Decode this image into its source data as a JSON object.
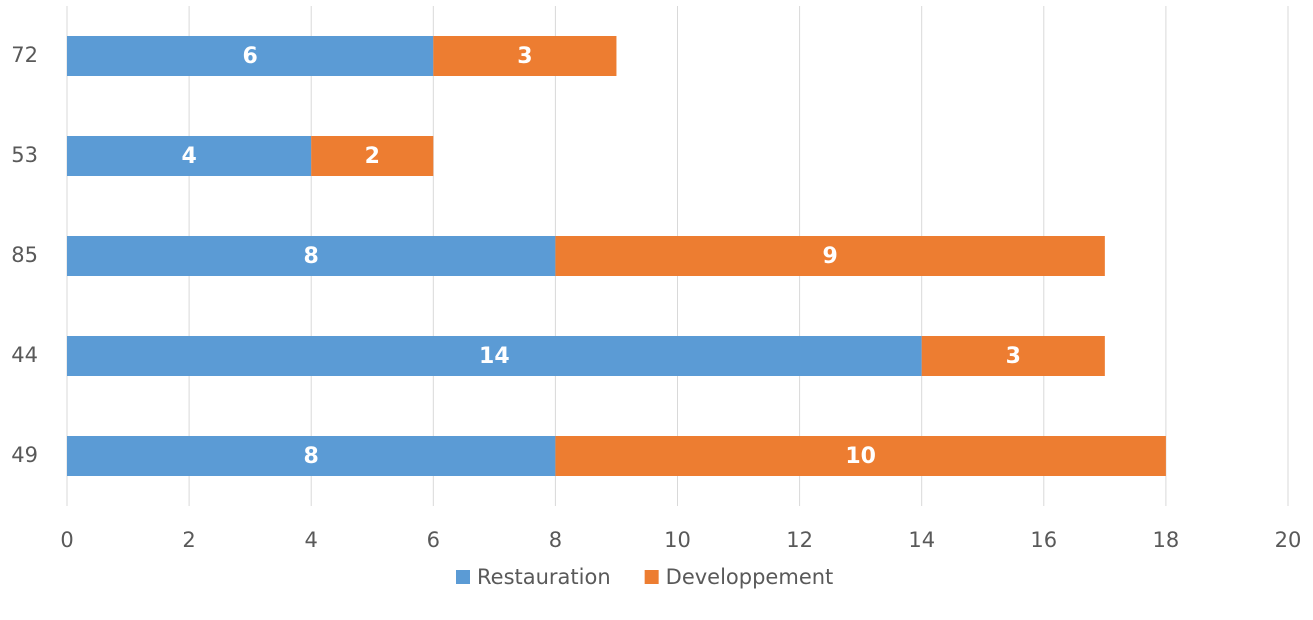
{
  "chart_data": {
    "type": "stacked_barh",
    "categories": [
      "72",
      "53",
      "85",
      "44",
      "49"
    ],
    "series": [
      {
        "name": "Restauration",
        "color": "#5b9bd5",
        "values": [
          6,
          4,
          8,
          14,
          8
        ]
      },
      {
        "name": "Developpement",
        "color": "#ed7d31",
        "values": [
          3,
          2,
          9,
          3,
          10
        ]
      }
    ],
    "xlim": [
      0,
      20
    ],
    "xticks": [
      0,
      2,
      4,
      6,
      8,
      10,
      12,
      14,
      16,
      18,
      20
    ],
    "grid": true,
    "legend": "bottom"
  }
}
